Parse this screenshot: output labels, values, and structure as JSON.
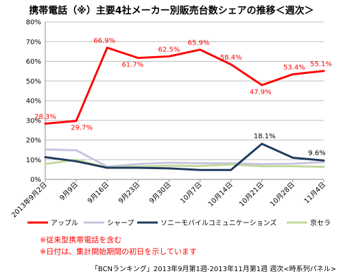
{
  "chart_data": {
    "type": "line",
    "title": "携帯電話（※）主要4社メーカー別販売台数シェアの推移＜週次＞",
    "x": [
      "2013年9月2日",
      "9月9日",
      "9月16日",
      "9月23日",
      "9月30日",
      "10月7日",
      "10月14日",
      "10月21日",
      "10月28日",
      "11月4日"
    ],
    "ylim": [
      0,
      80
    ],
    "y_ticks": [
      "0%",
      "10%",
      "20%",
      "30%",
      "40%",
      "50%",
      "60%",
      "70%",
      "80%"
    ],
    "grid": true,
    "legend_position": "bottom",
    "series": [
      {
        "name": "アップル",
        "color": "#ff0000",
        "values": [
          28.3,
          29.7,
          66.9,
          61.7,
          62.5,
          65.9,
          58.4,
          47.9,
          53.4,
          55.1
        ],
        "labels": [
          "28.3%",
          "29.7%",
          "66.9%",
          "61.7%",
          "62.5%",
          "65.9%",
          "58.4%",
          "47.9%",
          "53.4%",
          "55.1%"
        ]
      },
      {
        "name": "シャープ",
        "color": "#c5c5e0",
        "values": [
          15.2,
          14.8,
          6.5,
          7.8,
          8.5,
          8.2,
          8.2,
          7.8,
          8.0,
          8.8
        ],
        "labels": []
      },
      {
        "name": "ソニーモバイルコミュニケーションズ",
        "color": "#1f3a5f",
        "values": [
          11.3,
          9.2,
          5.9,
          5.9,
          5.6,
          4.8,
          4.8,
          18.1,
          11.0,
          9.6
        ],
        "labels": [
          "",
          "",
          "",
          "",
          "",
          "",
          "",
          "18.1%",
          "",
          "9.6%"
        ]
      },
      {
        "name": "京セラ",
        "color": "#c4d79b",
        "values": [
          7.8,
          10.0,
          6.0,
          6.5,
          7.0,
          6.8,
          7.6,
          6.7,
          6.7,
          6.4
        ],
        "labels": []
      }
    ]
  },
  "notes": [
    "※従来型携帯電話を含む",
    "※日付は、集計開始期間の初日を示しています"
  ],
  "source": "「BCNランキング」2013年9月第1週-2013年11月第1週 週次<時系列パネル>"
}
